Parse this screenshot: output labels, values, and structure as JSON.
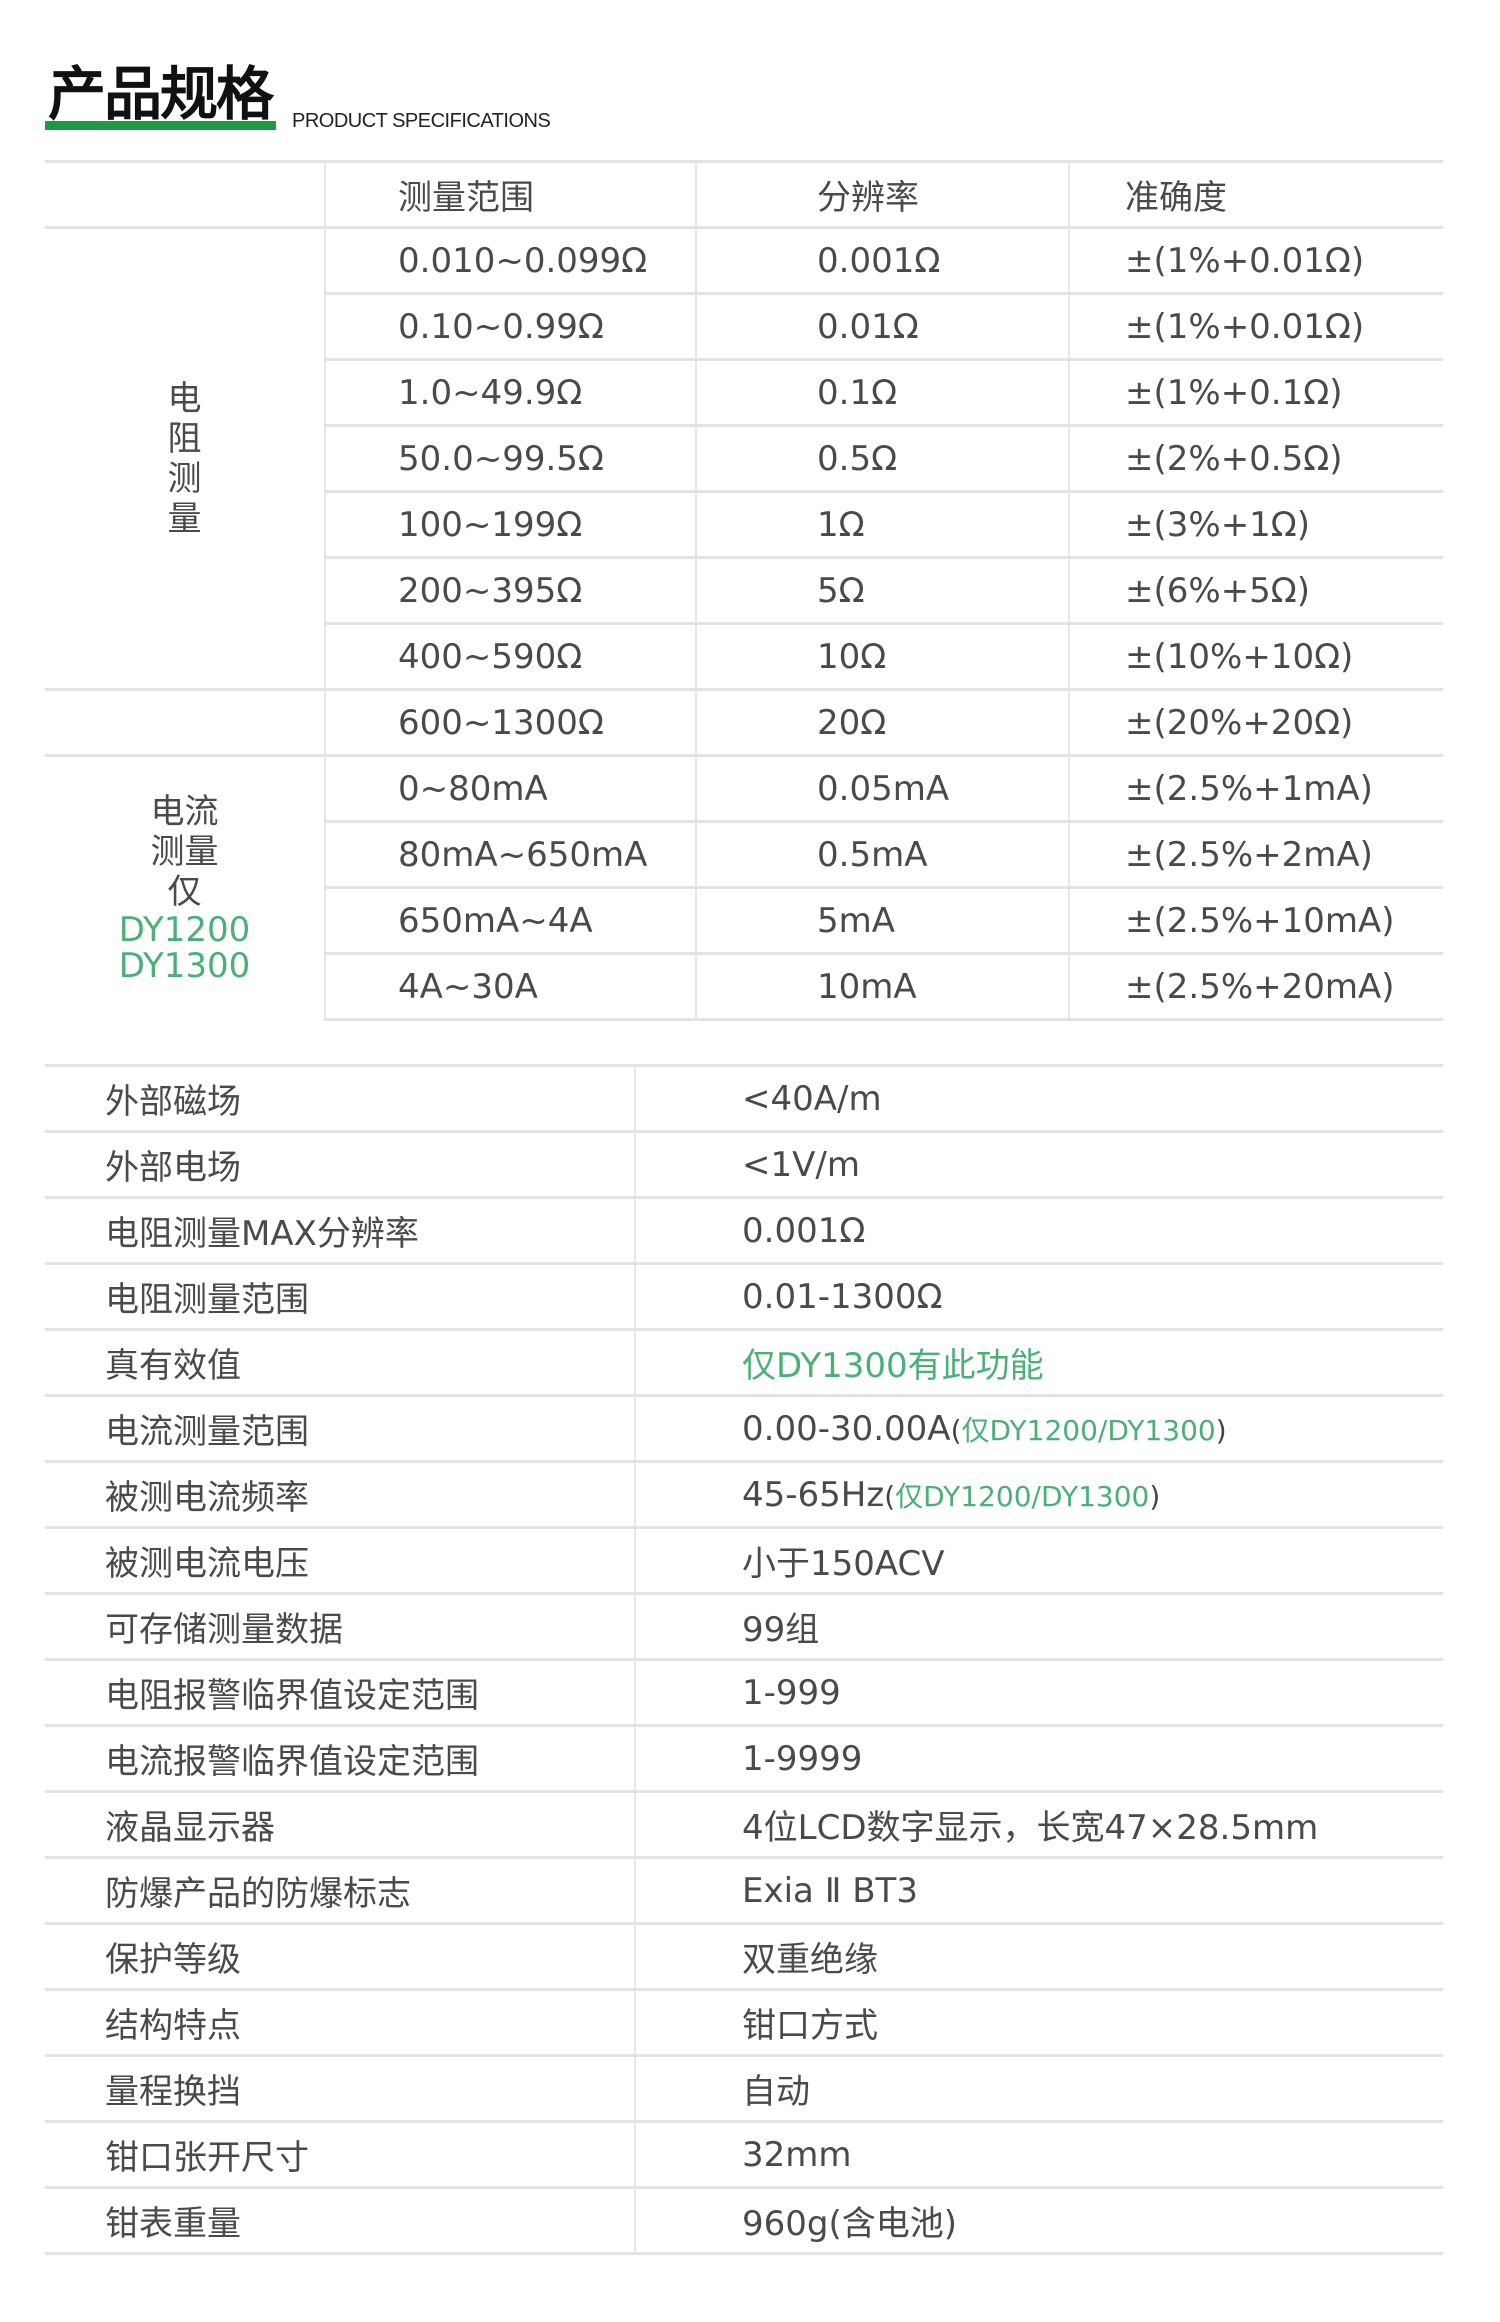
{
  "header": {
    "title": "产品规格",
    "subtitle": "PRODUCT SPECIFICATIONS",
    "accent": "#1e9a45"
  },
  "upper": {
    "columns": [
      "",
      "测量范围",
      "分辨率",
      "准确度"
    ],
    "groups": [
      {
        "label": "电阻测量",
        "label_green": [],
        "rows": [
          [
            "0.010~0.099Ω",
            "0.001Ω",
            "±(1%+0.01Ω)"
          ],
          [
            "0.10~0.99Ω",
            "0.01Ω",
            "±(1%+0.01Ω)"
          ],
          [
            "1.0~49.9Ω",
            "0.1Ω",
            "±(1%+0.1Ω)"
          ],
          [
            "50.0~99.5Ω",
            "0.5Ω",
            "±(2%+0.5Ω)"
          ],
          [
            "100~199Ω",
            "1Ω",
            "±(3%+1Ω)"
          ],
          [
            "200~395Ω",
            "5Ω",
            "±(6%+5Ω)"
          ],
          [
            "400~590Ω",
            "10Ω",
            "±(10%+10Ω)"
          ]
        ]
      },
      {
        "label": "",
        "label_green": [],
        "rows": [
          [
            "600~1300Ω",
            "20Ω",
            "±(20%+20Ω)"
          ]
        ]
      },
      {
        "label_lines": [
          "电流",
          "测量",
          "仅"
        ],
        "label_green": [
          "DY1200",
          "DY1300"
        ],
        "rows": [
          [
            "0~80mA",
            "0.05mA",
            "±(2.5%+1mA)"
          ],
          [
            "80mA~650mA",
            "0.5mA",
            "±(2.5%+2mA)"
          ],
          [
            "650mA~4A",
            "5mA",
            "±(2.5%+10mA)"
          ],
          [
            "4A~30A",
            "10mA",
            "±(2.5%+20mA)"
          ]
        ]
      }
    ]
  },
  "lower": {
    "rows": [
      {
        "key": "外部磁场",
        "value": "<40A/m"
      },
      {
        "key": "外部电场",
        "value": "<1V/m"
      },
      {
        "key": "电阻测量MAX分辨率",
        "value": "0.001Ω"
      },
      {
        "key": "电阻测量范围",
        "value": "0.01-1300Ω"
      },
      {
        "key": "真有效值",
        "value": "",
        "value_green": "仅DY1300有此功能"
      },
      {
        "key": "电流测量范围",
        "value": "0.00-30.00A",
        "note": "仅DY1200/DY1300"
      },
      {
        "key": "被测电流频率",
        "value": "45-65Hz",
        "note": "仅DY1200/DY1300"
      },
      {
        "key": "被测电流电压",
        "value": "小于150ACV"
      },
      {
        "key": "可存储测量数据",
        "value": "99组"
      },
      {
        "key": "电阻报警临界值设定范围",
        "value": "1-999"
      },
      {
        "key": "电流报警临界值设定范围",
        "value": "1-9999"
      },
      {
        "key": "液晶显示器",
        "value": "4位LCD数字显示，长宽47×28.5mm"
      },
      {
        "key": "防爆产品的防爆标志",
        "value": "Exia Ⅱ BT3"
      },
      {
        "key": "保护等级",
        "value": "双重绝缘"
      },
      {
        "key": "结构特点",
        "value": "钳口方式"
      },
      {
        "key": "量程换挡",
        "value": "自动"
      },
      {
        "key": "钳口张开尺寸",
        "value": "32mm"
      },
      {
        "key": "钳表重量",
        "value": "960g(含电池)"
      }
    ]
  }
}
